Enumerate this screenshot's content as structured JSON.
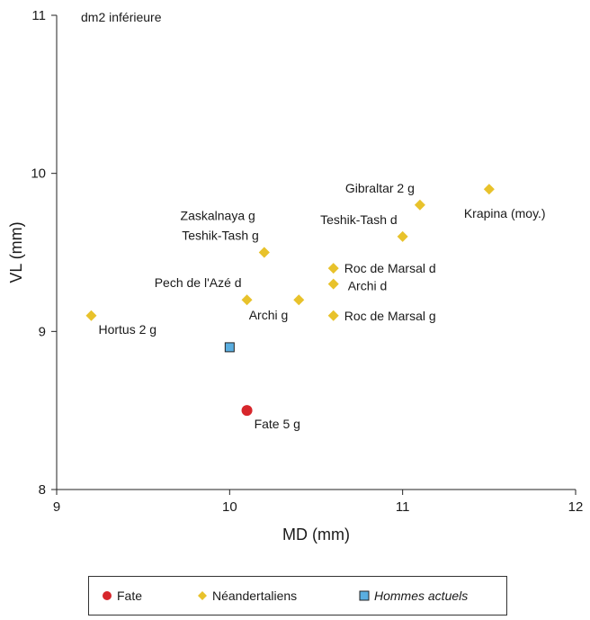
{
  "chart_data": {
    "type": "scatter",
    "title": "dm2 inférieure",
    "xlabel": "MD (mm)",
    "ylabel": "VL (mm)",
    "xlim": [
      9,
      12
    ],
    "ylim": [
      8,
      11
    ],
    "xticks": [
      "9",
      "10",
      "11",
      "12"
    ],
    "yticks": [
      "8",
      "9",
      "10",
      "11"
    ],
    "grid": false,
    "legend_position": "bottom",
    "series": [
      {
        "name": "Fate",
        "marker": "circle",
        "color": "#d7262b",
        "points": [
          {
            "x": 10.1,
            "y": 8.5,
            "label": "Fate 5 g",
            "label_side": "below-right"
          }
        ]
      },
      {
        "name": "Néandertaliens",
        "marker": "diamond",
        "color": "#e8c22b",
        "points": [
          {
            "x": 9.2,
            "y": 9.1,
            "label": "Hortus 2 g",
            "label_side": "below-right"
          },
          {
            "x": 10.1,
            "y": 9.2,
            "label": "Pech de l'Azé d",
            "label_side": "upper-left"
          },
          {
            "x": 10.2,
            "y": 9.5,
            "label": "Teshik-Tash g",
            "label_side": "upper-left"
          },
          {
            "x": 10.4,
            "y": 9.2,
            "label": "Archi g",
            "label_side": "lower-left"
          },
          {
            "x": 10.6,
            "y": 9.4,
            "label": "Roc de Marsal d",
            "label_side": "right"
          },
          {
            "x": 10.6,
            "y": 9.3,
            "label": "Archi d",
            "label_side": "right-low"
          },
          {
            "x": 10.6,
            "y": 9.1,
            "label": "Roc de Marsal g",
            "label_side": "right"
          },
          {
            "x": 11.0,
            "y": 9.6,
            "label": "Teshik-Tash d",
            "label_side": "upper-left"
          },
          {
            "x": 11.1,
            "y": 9.8,
            "label": "Gibraltar 2 g",
            "label_side": "upper-left"
          },
          {
            "x": 11.5,
            "y": 9.9,
            "label": "Krapina (moy.)",
            "label_side": "below"
          },
          {
            "x": 10.2,
            "y": 9.5,
            "label": "Zaskalnaya g",
            "label_side": "upper-left-high"
          }
        ]
      },
      {
        "name": "Hommes actuels",
        "marker": "square",
        "color": "#5aaee0",
        "points": [
          {
            "x": 10.0,
            "y": 8.9,
            "label": "",
            "label_side": "none"
          }
        ]
      }
    ]
  },
  "legend": {
    "fate": "Fate",
    "neandertal": "Néandertaliens",
    "modern": "Hommes actuels"
  }
}
